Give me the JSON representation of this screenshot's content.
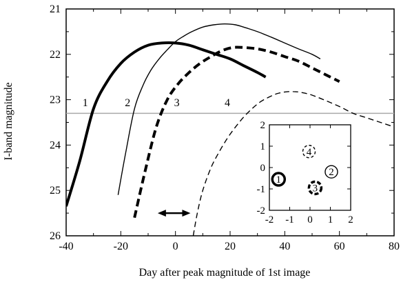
{
  "chart_data": {
    "type": "line",
    "xlabel": "Day after peak magnitude of 1st image",
    "ylabel": "I-band magnitude",
    "xlim": [
      -40,
      80
    ],
    "ylim": [
      26,
      21
    ],
    "y_inverted": true,
    "grid": false,
    "xticks": [
      "-40",
      "-20",
      "0",
      "20",
      "40",
      "60",
      "80"
    ],
    "yticks": [
      "21",
      "22",
      "23",
      "24",
      "25",
      "26"
    ],
    "series": [
      {
        "name": "1",
        "style": "thick-solid",
        "x": [
          -40,
          -35,
          -30,
          -25,
          -20,
          -15,
          -10,
          -5,
          0,
          5,
          10,
          15,
          20,
          25,
          30,
          33
        ],
        "y": [
          25.35,
          24.35,
          23.2,
          22.6,
          22.2,
          21.95,
          21.8,
          21.75,
          21.75,
          21.8,
          21.9,
          22.0,
          22.1,
          22.25,
          22.4,
          22.5
        ]
      },
      {
        "name": "2",
        "style": "thin-solid",
        "x": [
          -21,
          -18,
          -15,
          -12,
          -9,
          -6,
          -3,
          0,
          3,
          6,
          10,
          14,
          18,
          22,
          26,
          30,
          35,
          40,
          45,
          50,
          53
        ],
        "y": [
          25.1,
          24.1,
          23.2,
          22.7,
          22.35,
          22.1,
          21.9,
          21.72,
          21.6,
          21.5,
          21.4,
          21.35,
          21.33,
          21.35,
          21.42,
          21.5,
          21.62,
          21.75,
          21.88,
          22.0,
          22.1
        ]
      },
      {
        "name": "3",
        "style": "thick-dashed",
        "x": [
          -15,
          -11,
          -7,
          -3,
          1,
          5,
          9,
          13,
          17,
          21,
          25,
          30,
          35,
          40,
          45,
          50,
          55,
          60
        ],
        "y": [
          25.6,
          24.55,
          23.6,
          23.0,
          22.65,
          22.4,
          22.2,
          22.05,
          21.92,
          21.85,
          21.85,
          21.88,
          21.95,
          22.05,
          22.15,
          22.3,
          22.45,
          22.6
        ]
      },
      {
        "name": "4",
        "style": "thin-dashed",
        "x": [
          6.5,
          8,
          10,
          13,
          16,
          19,
          22,
          25,
          28,
          31,
          34,
          37,
          40,
          43,
          46,
          50,
          55,
          60,
          65,
          70,
          75,
          80
        ],
        "y": [
          26.0,
          25.5,
          25.0,
          24.5,
          24.15,
          23.85,
          23.6,
          23.38,
          23.2,
          23.05,
          22.95,
          22.87,
          22.83,
          22.82,
          22.84,
          22.9,
          23.02,
          23.15,
          23.3,
          23.4,
          23.5,
          23.6
        ]
      }
    ],
    "curve_labels": [
      {
        "text": "1",
        "x": -33,
        "y": 23.2
      },
      {
        "text": "2",
        "x": -17.5,
        "y": 23.2
      },
      {
        "text": "3",
        "x": 0.5,
        "y": 23.2
      },
      {
        "text": "4",
        "x": 19,
        "y": 23.2
      }
    ],
    "threshold_line": {
      "y": 23.3,
      "color": "#a8a8a8"
    },
    "arrow": {
      "x_from": -6.5,
      "x_to": 5.5,
      "y": 25.5
    },
    "inset": {
      "xlim": [
        -2,
        2
      ],
      "ylim": [
        -2,
        2
      ],
      "xticks": [
        "-2",
        "-1",
        "0",
        "1",
        "2"
      ],
      "yticks": [
        "2",
        "1",
        "0",
        "-1",
        "-2"
      ],
      "images": [
        {
          "label": "1",
          "x": -1.55,
          "y": -0.55,
          "style": "thick-solid"
        },
        {
          "label": "2",
          "x": 1.05,
          "y": -0.2,
          "style": "thin-solid"
        },
        {
          "label": "3",
          "x": 0.25,
          "y": -0.95,
          "style": "thick-dashed"
        },
        {
          "label": "4",
          "x": -0.05,
          "y": 0.75,
          "style": "thin-dashed"
        }
      ]
    }
  }
}
